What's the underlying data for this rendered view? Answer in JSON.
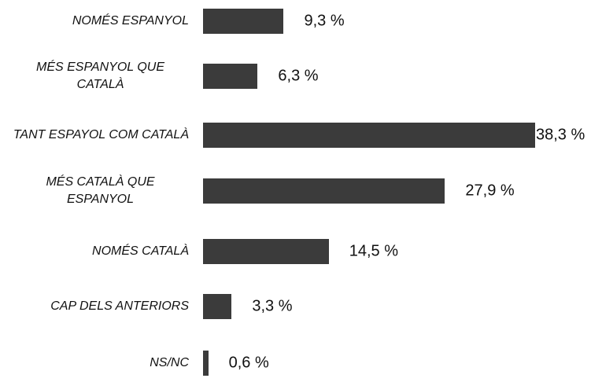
{
  "chart_data": {
    "type": "bar",
    "orientation": "horizontal",
    "categories": [
      "NOMÉS ESPANYOL",
      "MÉS ESPANYOL QUE CATALÀ",
      "TANT ESPAYOL COM CATALÀ",
      "MÉS CATALÀ QUE ESPANYOL",
      "NOMÉS CATALÀ",
      "CAP DELS ANTERIORS",
      "NS/NC"
    ],
    "values": [
      9.3,
      6.3,
      38.3,
      27.9,
      14.5,
      3.3,
      0.6
    ],
    "value_labels": [
      "9,3 %",
      "6,3 %",
      "38,3 %",
      "27,9 %",
      "14,5 %",
      "3,3 %",
      "0,6 %"
    ],
    "color": "#3b3b3b"
  }
}
